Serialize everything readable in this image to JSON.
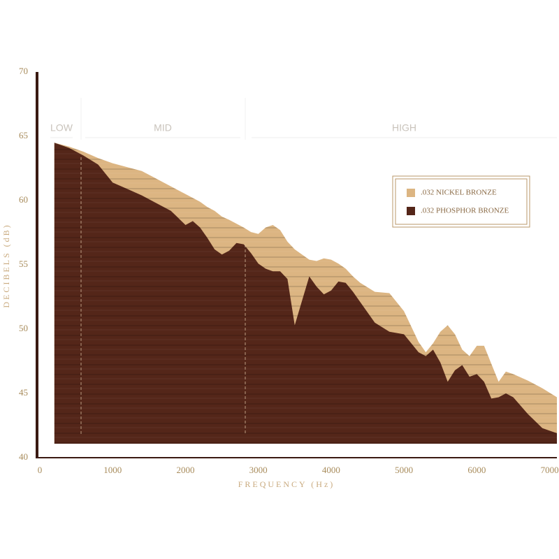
{
  "chart_data": {
    "type": "area",
    "x_label": "FREQUENCY (Hz)",
    "y_label": "DECIBELS (dB)",
    "bands": [
      "LOW",
      "MID",
      "HIGH"
    ],
    "xlim": [
      0,
      7100
    ],
    "ylim": [
      40,
      70
    ],
    "xticks": [
      0,
      1000,
      2000,
      3000,
      4000,
      5000,
      6000,
      7000
    ],
    "yticks": [
      40,
      45,
      50,
      55,
      60,
      65,
      70
    ],
    "legend": "upper right",
    "x": [
      200,
      400,
      600,
      800,
      1000,
      1200,
      1400,
      1600,
      1800,
      2000,
      2100,
      2200,
      2300,
      2400,
      2500,
      2600,
      2700,
      2800,
      2900,
      3000,
      3100,
      3200,
      3300,
      3400,
      3500,
      3600,
      3700,
      3800,
      3900,
      4000,
      4100,
      4200,
      4300,
      4400,
      4600,
      4800,
      5000,
      5200,
      5300,
      5400,
      5500,
      5600,
      5700,
      5800,
      5900,
      6000,
      6100,
      6200,
      6300,
      6400,
      6500,
      6700,
      6900,
      7100
    ],
    "series": [
      {
        "name": ".032 NICKEL BRONZE",
        "color": "#dcb582",
        "values": [
          64.5,
          64.2,
          63.8,
          63.3,
          62.9,
          62.6,
          62.3,
          61.7,
          61.1,
          60.5,
          60.2,
          59.9,
          59.5,
          59.2,
          58.75,
          58.5,
          58.2,
          57.9,
          57.55,
          57.4,
          57.9,
          58.1,
          57.7,
          56.8,
          56.2,
          55.8,
          55.4,
          55.3,
          55.5,
          55.4,
          55.1,
          54.7,
          54.1,
          53.6,
          52.9,
          52.8,
          51.4,
          49.0,
          48.2,
          48.9,
          49.8,
          50.3,
          49.6,
          48.4,
          47.9,
          48.7,
          48.7,
          47.3,
          45.9,
          46.7,
          46.5,
          46.0,
          45.4,
          44.7
        ]
      },
      {
        "name": ".032 PHOSPHOR BRONZE",
        "color": "#542619",
        "values": [
          64.5,
          64.1,
          63.5,
          62.8,
          61.4,
          60.9,
          60.4,
          59.8,
          59.2,
          58.1,
          58.4,
          57.9,
          57.1,
          56.2,
          55.8,
          56.1,
          56.7,
          56.6,
          55.9,
          55.1,
          54.7,
          54.5,
          54.5,
          53.9,
          50.3,
          52.2,
          54.1,
          53.3,
          52.7,
          53.0,
          53.7,
          53.6,
          52.9,
          52.1,
          50.5,
          49.8,
          49.6,
          48.2,
          47.9,
          48.4,
          47.4,
          45.9,
          46.8,
          47.2,
          46.3,
          46.5,
          45.9,
          44.6,
          44.7,
          45.0,
          44.7,
          43.4,
          42.3,
          41.9
        ]
      }
    ]
  }
}
